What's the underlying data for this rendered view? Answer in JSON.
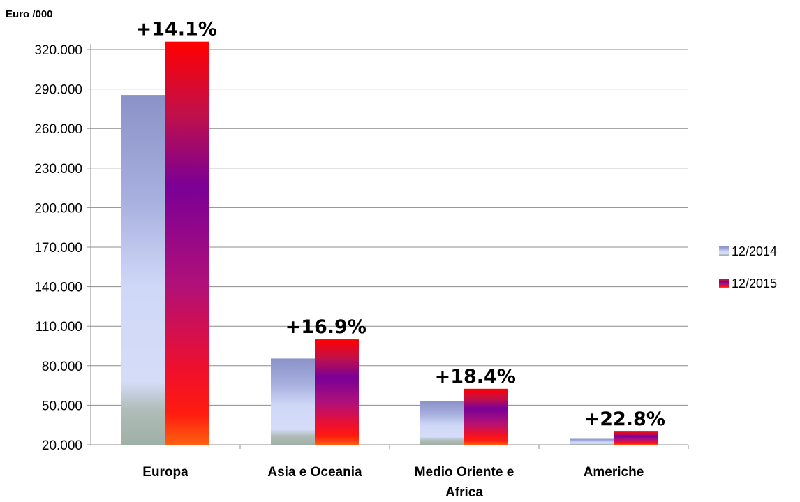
{
  "chart_data": {
    "type": "bar",
    "ylabel": "Euro /000",
    "categories": [
      "Europa",
      "Asia e Oceania",
      "Medio Oriente e Africa",
      "Americhe"
    ],
    "category_lines": [
      [
        "Europa"
      ],
      [
        "Asia e Oceania"
      ],
      [
        "Medio Oriente e",
        "Africa"
      ],
      [
        "Americhe"
      ]
    ],
    "series": [
      {
        "name": "12/2014",
        "values": [
          285500,
          85500,
          53000,
          24500
        ]
      },
      {
        "name": "12/2015",
        "values": [
          326000,
          100000,
          62500,
          30000
        ]
      }
    ],
    "growth_labels": [
      "+14.1%",
      "+16.9%",
      "+18.4%",
      "+22.8%"
    ],
    "ylim": [
      20000,
      320000
    ],
    "yticks": [
      20000,
      50000,
      80000,
      110000,
      140000,
      170000,
      200000,
      230000,
      260000,
      290000,
      320000
    ],
    "ytick_labels": [
      "20.000",
      "50.000",
      "80.000",
      "110.000",
      "140.000",
      "170.000",
      "200.000",
      "230.000",
      "260.000",
      "290.000",
      "320.000"
    ],
    "grid": true,
    "legend_position": "right"
  }
}
